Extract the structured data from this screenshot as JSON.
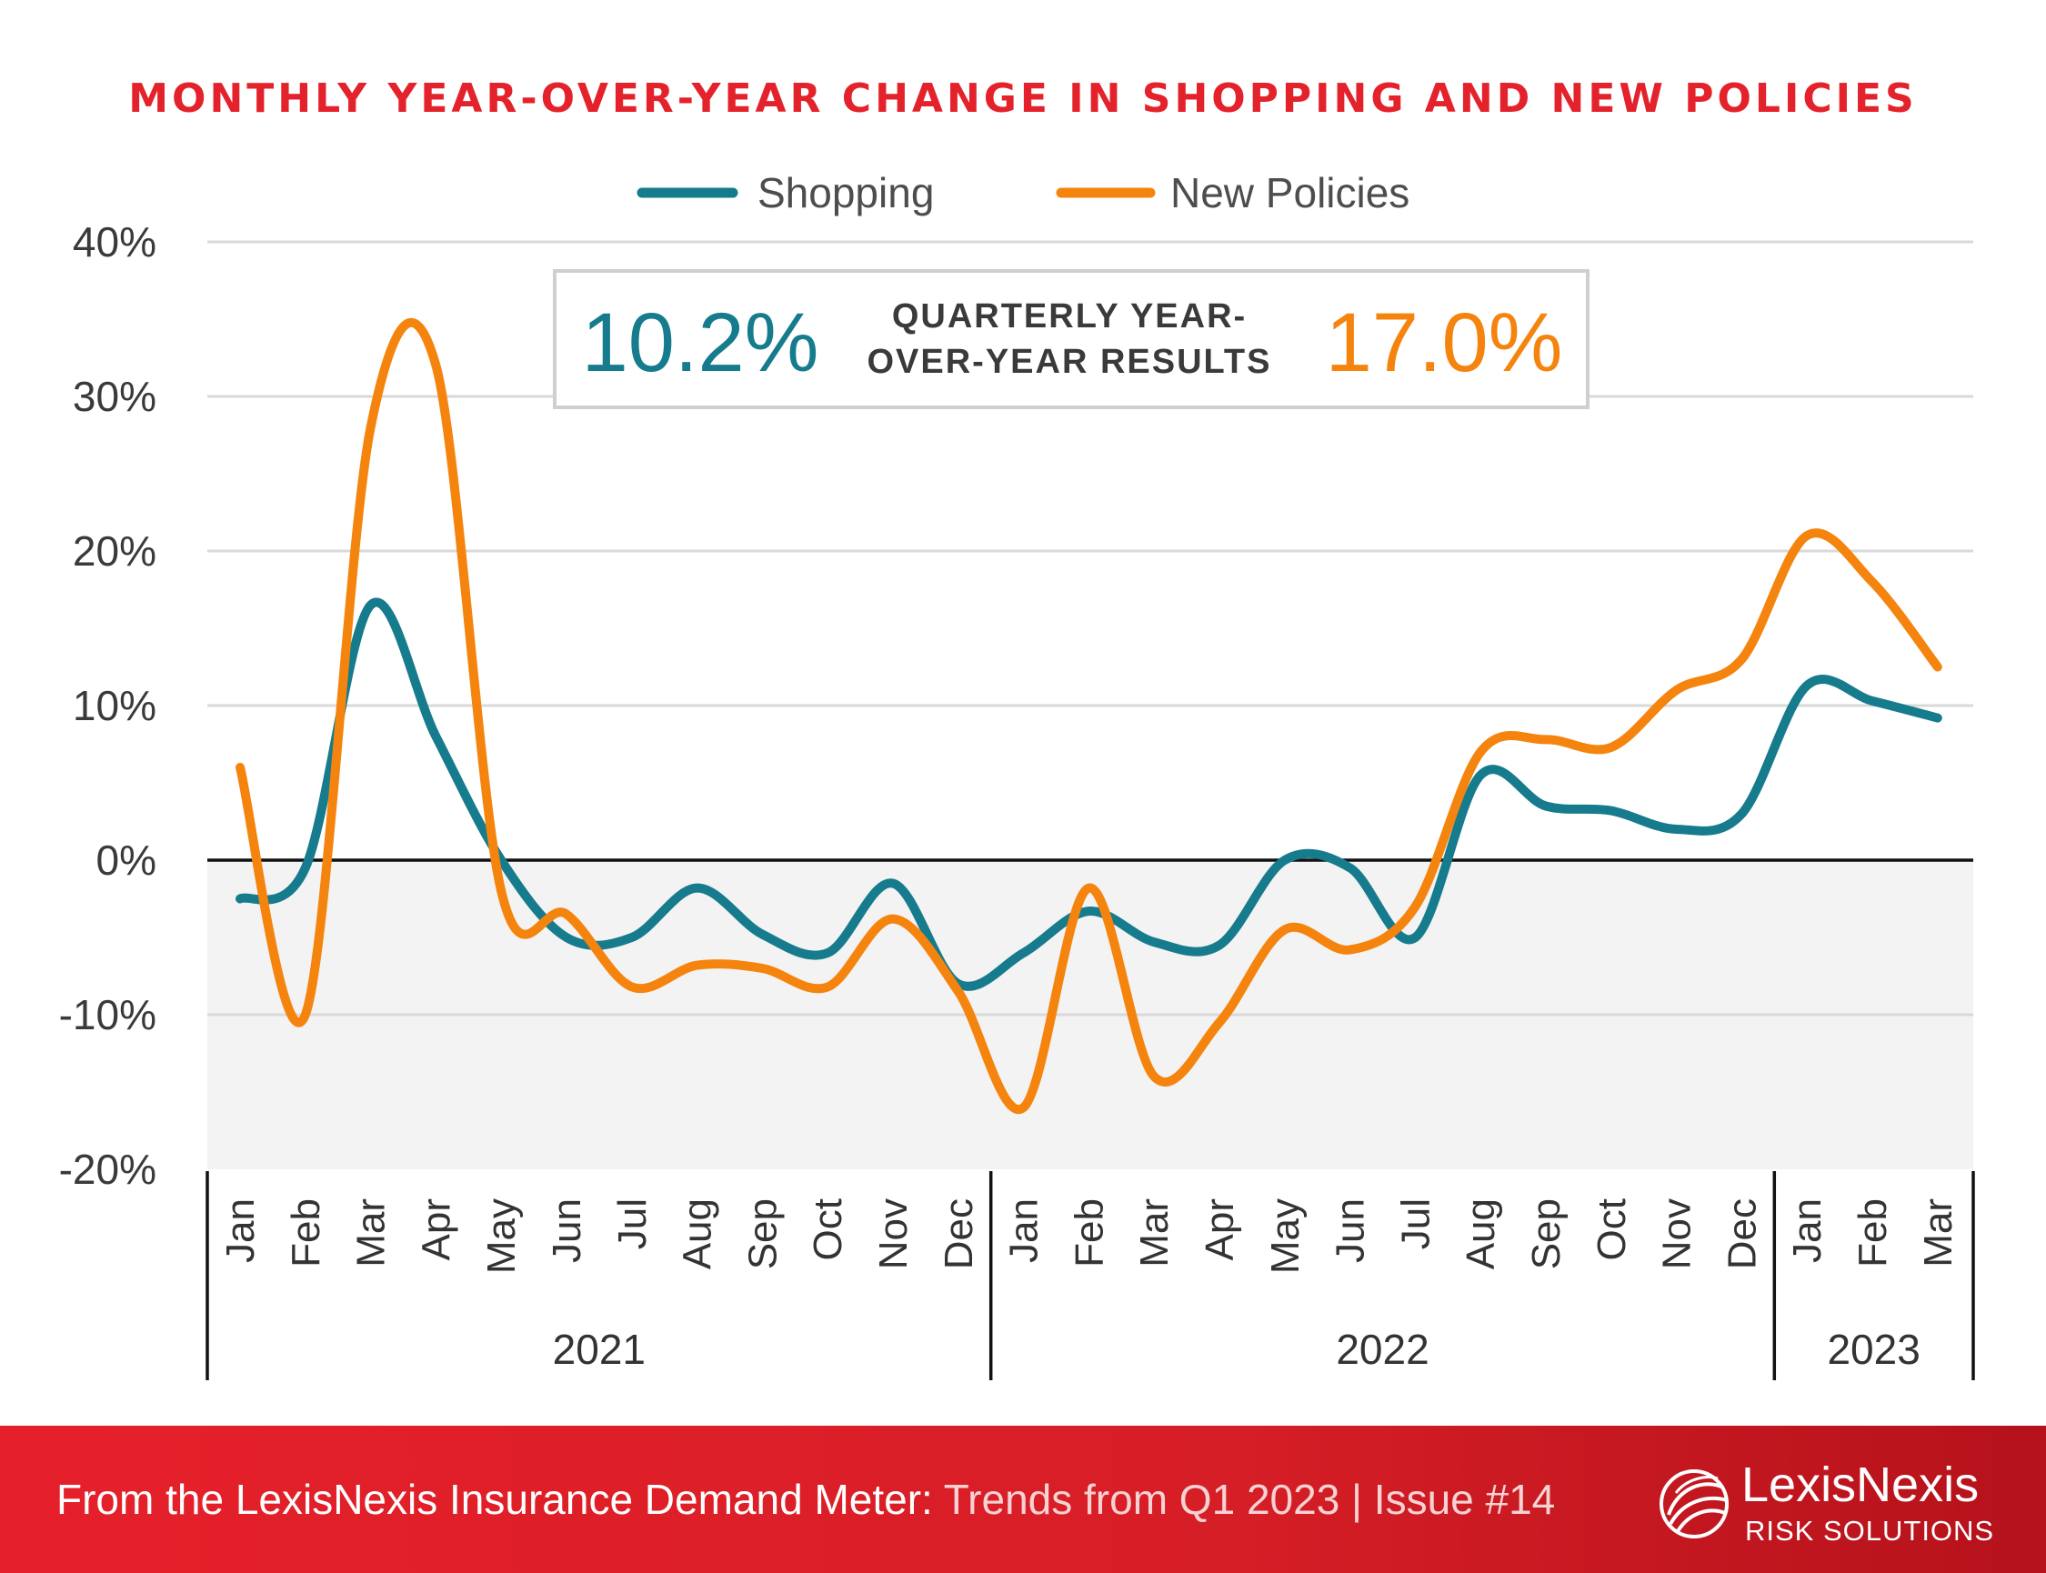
{
  "chart_data": {
    "type": "line",
    "title": "MONTHLY YEAR-OVER-YEAR CHANGE IN SHOPPING AND NEW POLICIES",
    "categories": [
      "Jan",
      "Feb",
      "Mar",
      "Apr",
      "May",
      "Jun",
      "Jul",
      "Aug",
      "Sep",
      "Oct",
      "Nov",
      "Dec",
      "Jan",
      "Feb",
      "Mar",
      "Apr",
      "May",
      "Jun",
      "Jul",
      "Aug",
      "Sep",
      "Oct",
      "Nov",
      "Dec",
      "Jan",
      "Feb",
      "Mar"
    ],
    "year_groups": [
      {
        "label": "2021",
        "start": 0,
        "count": 12
      },
      {
        "label": "2022",
        "start": 12,
        "count": 12
      },
      {
        "label": "2023",
        "start": 24,
        "count": 3
      }
    ],
    "ylim": [
      -20,
      40
    ],
    "yticks": [
      -20,
      -10,
      0,
      10,
      20,
      30,
      40
    ],
    "ytick_labels": [
      "-20%",
      "-10%",
      "0%",
      "10%",
      "20%",
      "30%",
      "40%"
    ],
    "series": [
      {
        "name": "Shopping",
        "color": "#167b8c",
        "values": [
          -2.5,
          -0.5,
          16.5,
          8.0,
          0.0,
          -5.0,
          -5.0,
          -1.8,
          -4.8,
          -6.0,
          -1.5,
          -8.0,
          -6.0,
          -3.3,
          -5.3,
          -5.5,
          0.0,
          -0.5,
          -5.0,
          5.5,
          3.5,
          3.2,
          2.0,
          3.0,
          11.3,
          10.3,
          9.2
        ]
      },
      {
        "name": "New Policies",
        "color": "#f5840f",
        "values": [
          6.0,
          -10.0,
          28.0,
          32.0,
          -2.0,
          -3.5,
          -8.2,
          -6.8,
          -7.0,
          -8.2,
          -3.8,
          -8.5,
          -16.0,
          -1.8,
          -14.0,
          -10.5,
          -4.5,
          -5.8,
          -3.0,
          7.0,
          7.8,
          7.3,
          11.0,
          13.0,
          21.0,
          18.0,
          12.5
        ]
      }
    ],
    "annotation": {
      "shopping_value": "10.2%",
      "new_policies_value": "17.0%",
      "label_line1": "QUARTERLY YEAR-",
      "label_line2": "OVER-YEAR RESULTS"
    },
    "legend_position": "top-center",
    "grid": true
  },
  "footer": {
    "source_strong": "From the LexisNexis Insurance Demand Meter:",
    "source_light": " Trends from Q1 2023  |  Issue #14",
    "logo_name": "LexisNexis",
    "logo_sub": "RISK SOLUTIONS",
    "logo_mark": "globe-swirl-icon"
  }
}
